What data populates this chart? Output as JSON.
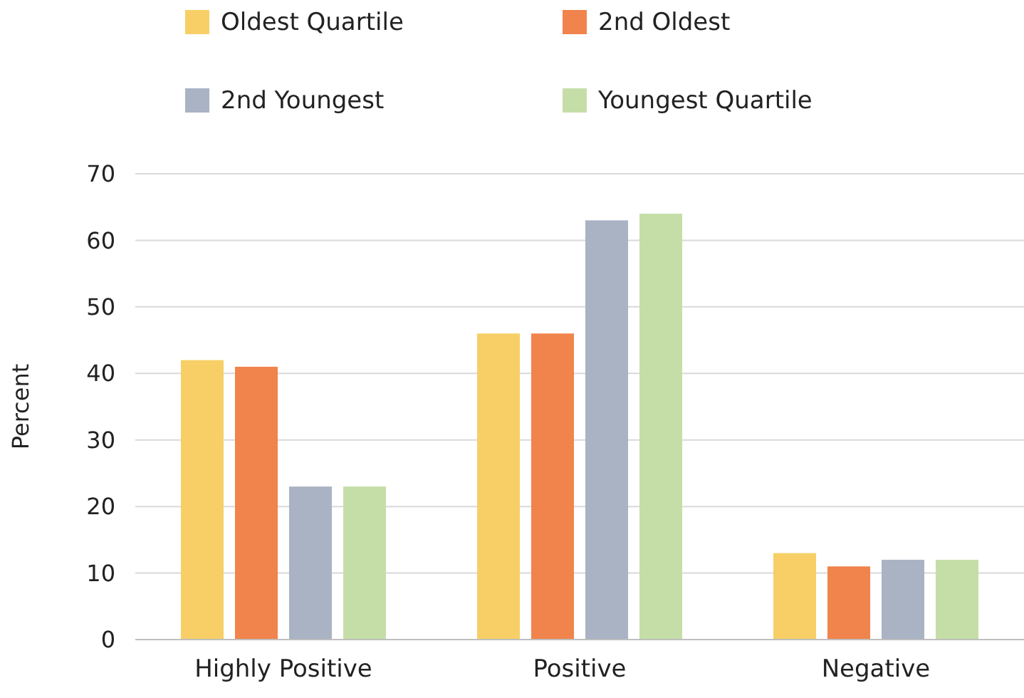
{
  "chart_data": {
    "type": "bar",
    "ylabel": "Percent",
    "categories": [
      "Highly Positive",
      "Positive",
      "Negative"
    ],
    "series": [
      {
        "name": "Oldest Quartile",
        "color": "#f7cf66",
        "values": [
          42,
          46,
          13
        ]
      },
      {
        "name": "2nd Oldest",
        "color": "#f0844c",
        "values": [
          41,
          46,
          11
        ]
      },
      {
        "name": "2nd Youngest",
        "color": "#a9b3c4",
        "values": [
          23,
          63,
          12
        ]
      },
      {
        "name": "Youngest Quartile",
        "color": "#c5dea8",
        "values": [
          23,
          64,
          12
        ]
      }
    ],
    "ylim": [
      0,
      70
    ],
    "yticks": [
      0,
      10,
      20,
      30,
      40,
      50,
      60,
      70
    ],
    "grid": "y",
    "legend": "top"
  }
}
